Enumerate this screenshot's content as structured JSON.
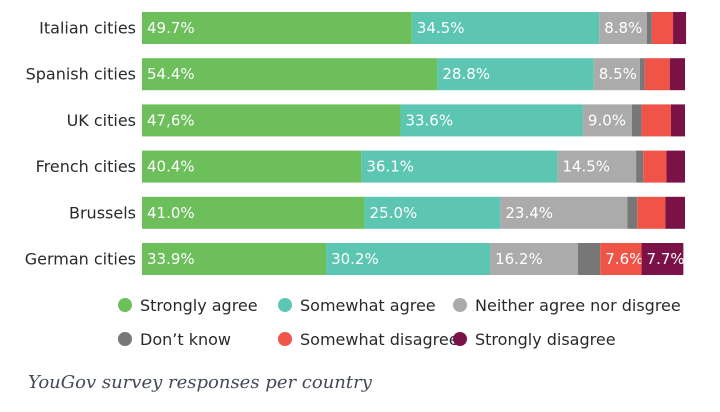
{
  "chart_data": {
    "type": "bar",
    "orientation": "horizontal-stacked-100",
    "categories": [
      "Italian cities",
      "Spanish cities",
      "UK cities",
      "French cities",
      "Brussels",
      "German cities"
    ],
    "series": [
      {
        "name": "Strongly agree",
        "color": "#6cbf5a",
        "values": [
          49.7,
          54.4,
          47.6,
          40.4,
          41.0,
          33.9
        ],
        "labels": [
          "49.7%",
          "54.4%",
          "47,6%",
          "40.4%",
          "41.0%",
          "33.9%"
        ]
      },
      {
        "name": "Somewhat agree",
        "color": "#5cc6b2",
        "values": [
          34.5,
          28.8,
          33.6,
          36.1,
          25.0,
          30.2
        ],
        "labels": [
          "34.5%",
          "28.8%",
          "33.6%",
          "36.1%",
          "25.0%",
          "30.2%"
        ]
      },
      {
        "name": "Neither agree nor disgree",
        "color": "#ababab",
        "values": [
          8.8,
          8.5,
          9.0,
          14.5,
          23.4,
          16.2
        ],
        "labels": [
          "8.8%",
          "8.5%",
          "9.0%",
          "14.5%",
          "23.4%",
          "16.2%"
        ]
      },
      {
        "name": "Don’t know",
        "color": "#777777",
        "values": [
          0.9,
          0.9,
          1.8,
          1.3,
          1.8,
          4.1
        ],
        "labels": [
          "",
          "",
          "",
          "",
          "",
          ""
        ]
      },
      {
        "name": "Somewhat disagree",
        "color": "#ef5446",
        "values": [
          3.9,
          4.6,
          5.4,
          4.3,
          5.2,
          7.6
        ],
        "labels": [
          "",
          "",
          "",
          "",
          "",
          "7.6%"
        ]
      },
      {
        "name": "Strongly disagree",
        "color": "#7b1247",
        "values": [
          2.4,
          2.8,
          2.6,
          3.4,
          3.6,
          7.7
        ],
        "labels": [
          "",
          "",
          "",
          "",
          "",
          "7.7%"
        ]
      }
    ],
    "xlim": [
      0,
      100
    ],
    "legend_position": "bottom",
    "grid": false
  },
  "caption": "YouGov survey responses per country"
}
